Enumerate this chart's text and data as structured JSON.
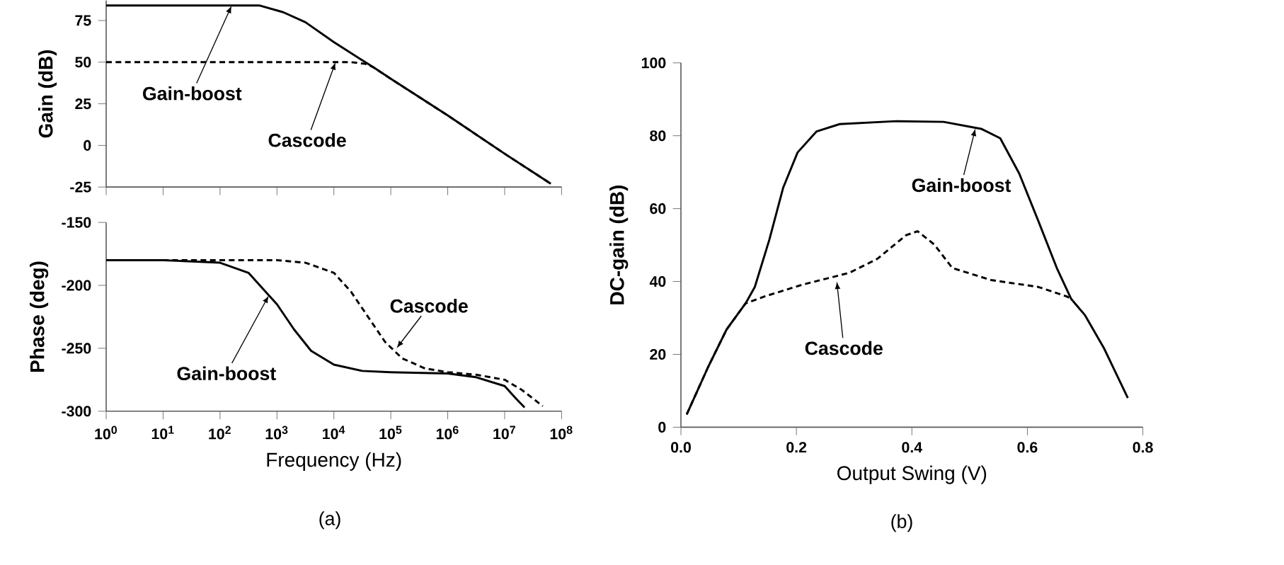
{
  "chart_data": [
    {
      "type": "line",
      "ylabel": "Gain  (dB)",
      "xlim": [
        1,
        100000000
      ],
      "ylim": [
        -25,
        87
      ],
      "log": "x",
      "tick_labels": "y",
      "marker": "none",
      "xticks": [
        {
          "value": 1,
          "label": null
        },
        {
          "value": 10,
          "label": null
        },
        {
          "value": 100,
          "label": null
        },
        {
          "value": 1000,
          "label": null
        },
        {
          "value": 10000,
          "label": null
        },
        {
          "value": 100000,
          "label": null
        },
        {
          "value": 1000000,
          "label": null
        },
        {
          "value": 10000000,
          "label": null
        },
        {
          "value": 100000000,
          "label": null
        }
      ],
      "yticks": [
        -25,
        0,
        25,
        50,
        75
      ],
      "series": [
        {
          "color": "#000000",
          "line_style": "solid",
          "x": [
            1,
            500,
            1288,
            3162,
            10000,
            49000,
            100000,
            1000000,
            10000000,
            64600000
          ],
          "values": [
            84,
            84,
            80,
            74,
            62,
            47,
            40,
            18,
            -5,
            -23
          ]
        },
        {
          "color": "#000000",
          "line_style": "dashed",
          "x": [
            1,
            19950,
            35480,
            49000,
            100000,
            1000000,
            10000000,
            64600000
          ],
          "values": [
            50,
            50,
            49,
            47,
            40,
            18,
            -5,
            -23
          ]
        }
      ],
      "annotations": [
        {
          "text": "Gain-boost",
          "x": 160,
          "y": 84
        },
        {
          "text": "Cascode",
          "x": 10700,
          "y": 50
        }
      ]
    },
    {
      "type": "line",
      "ylabel": "Phase  (deg)",
      "xlabel": "Frequency  (Hz)",
      "xlim": [
        1,
        100000000
      ],
      "ylim": [
        -300,
        -150
      ],
      "log": "x",
      "marker": "none",
      "xticks": [
        {
          "value": 1,
          "label": "10$^{0}$"
        },
        {
          "value": 10,
          "label": "10$^{1}$"
        },
        {
          "value": 100,
          "label": "10$^{2}$"
        },
        {
          "value": 1000,
          "label": "10$^{3}$"
        },
        {
          "value": 10000,
          "label": "10$^{4}$"
        },
        {
          "value": 100000,
          "label": "10$^{5}$"
        },
        {
          "value": 1000000,
          "label": "10$^{6}$"
        },
        {
          "value": 10000000,
          "label": "10$^{7}$"
        },
        {
          "value": 100000000,
          "label": "10$^{8}$"
        }
      ],
      "yticks": [
        -300,
        -250,
        -200,
        -150
      ],
      "series": [
        {
          "color": "#000000",
          "line_style": "solid",
          "x": [
            1,
            10,
            100,
            316,
            631,
            1000,
            1995,
            3981,
            10000,
            31620,
            100000,
            1000000,
            3162000,
            10000000,
            15850000,
            22390000
          ],
          "values": [
            -180,
            -180,
            -182,
            -190,
            -205,
            -215,
            -235,
            -252,
            -263,
            -268,
            -269,
            -270,
            -273,
            -280,
            -290,
            -297
          ]
        },
        {
          "color": "#000000",
          "line_style": "dashed",
          "x": [
            1,
            1000,
            3162,
            10000,
            19950,
            39810,
            79430,
            158500,
            398100,
            1000000,
            3162000,
            10000000,
            19950000,
            46770000
          ],
          "values": [
            -180,
            -180,
            -182,
            -190,
            -205,
            -225,
            -245,
            -258,
            -266,
            -269,
            -271,
            -275,
            -283,
            -296
          ]
        }
      ],
      "annotations": [
        {
          "text": "Gain-boost",
          "x": 720,
          "y": -208
        },
        {
          "text": "Cascode",
          "x": 126000,
          "y": -250
        },
        "(a)"
      ]
    },
    {
      "type": "line",
      "ylabel": "DC-gain  (dB)",
      "xlabel": "Output Swing  (V)",
      "xlim": [
        0,
        0.8
      ],
      "ylim": [
        0,
        100
      ],
      "marker": "none",
      "xticks": [
        {
          "value": 0,
          "label": "0.0"
        },
        0.2,
        0.4,
        0.6,
        0.8
      ],
      "yticks": [
        0,
        20,
        40,
        60,
        80,
        100
      ],
      "series": [
        {
          "color": "#000000",
          "line_style": "solid",
          "x": [
            0.01,
            0.047,
            0.079,
            0.112,
            0.128,
            0.153,
            0.177,
            0.202,
            0.235,
            0.275,
            0.373,
            0.455,
            0.52,
            0.553,
            0.586,
            0.619,
            0.651,
            0.676,
            0.7,
            0.733,
            0.774
          ],
          "values": [
            3.5,
            16.5,
            26.8,
            34,
            38.5,
            51.4,
            65.7,
            75.4,
            81.2,
            83.2,
            84,
            83.8,
            81.9,
            79.3,
            69.6,
            56.6,
            43.7,
            35.2,
            30.7,
            21.6,
            8
          ]
        },
        {
          "color": "#000000",
          "line_style": "dashed",
          "x": [
            0.01,
            0.047,
            0.079,
            0.112,
            0.145,
            0.21,
            0.292,
            0.34,
            0.39,
            0.41,
            0.439,
            0.47,
            0.537,
            0.619,
            0.668,
            0.676
          ],
          "values": [
            3.5,
            16.5,
            26.8,
            34,
            35.9,
            39.1,
            42.4,
            46.2,
            52.7,
            53.8,
            50.1,
            43.7,
            40.4,
            38.5,
            35.9,
            35.2
          ]
        }
      ],
      "annotations": [
        {
          "text": "Gain-boost",
          "x": 0.51,
          "y": 82
        },
        {
          "text": "Cascode",
          "x": 0.27,
          "y": 40
        },
        "(b)"
      ]
    }
  ]
}
